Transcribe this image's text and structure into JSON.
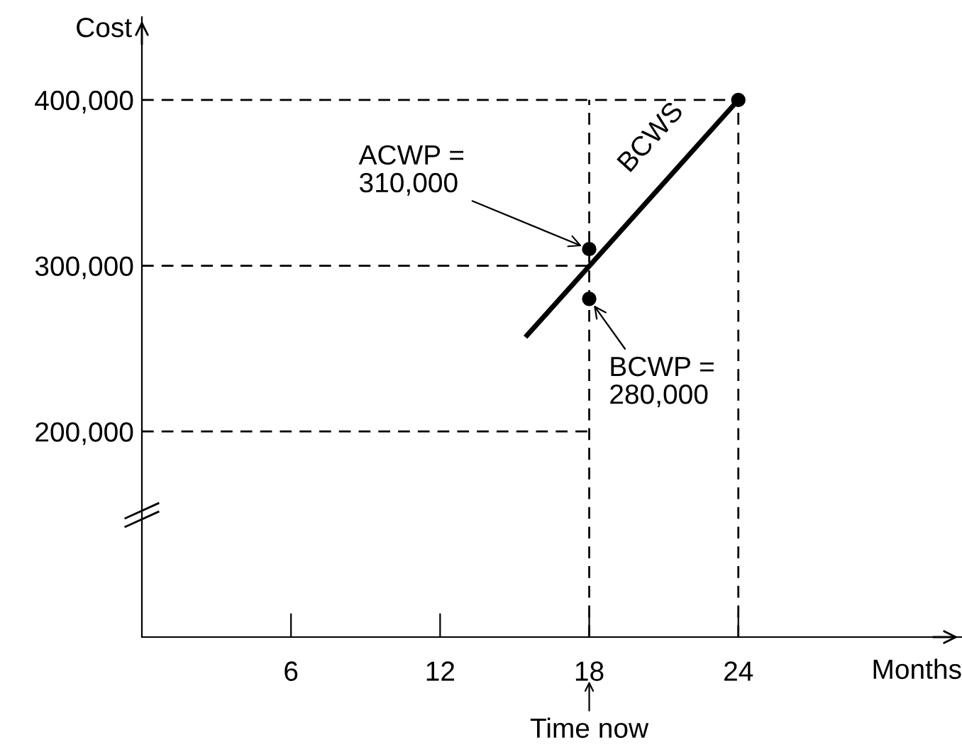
{
  "chart_data": {
    "type": "line",
    "xlabel": "Months",
    "ylabel": "Cost",
    "xlim": [
      0,
      33
    ],
    "ylim": [
      76000,
      450000
    ],
    "xticks": [
      6,
      12,
      18,
      24
    ],
    "yticks": [
      {
        "value": 200000,
        "label": "200,000"
      },
      {
        "value": 300000,
        "label": "300,000"
      },
      {
        "value": 400000,
        "label": "400,000"
      }
    ],
    "grid": false,
    "legend": false,
    "series": [
      {
        "name": "BCWS",
        "color": "#000000",
        "line_style": "solid",
        "x": [
          15.5,
          24
        ],
        "values": [
          258000,
          400000
        ]
      },
      {
        "type": "scatter",
        "color": "#000000",
        "marker": "circle",
        "x": [
          18,
          18,
          24
        ],
        "values": [
          310000,
          280000,
          400000
        ]
      },
      {
        "type": "line",
        "color": "#000000",
        "line_style": "dashed",
        "x": [
          0,
          24
        ],
        "values": [
          400000,
          400000
        ]
      },
      {
        "type": "line",
        "color": "#000000",
        "line_style": "dashed",
        "x": [
          0,
          18
        ],
        "values": [
          300000,
          300000
        ]
      },
      {
        "type": "line",
        "color": "#000000",
        "line_style": "dashed",
        "x": [
          0,
          18
        ],
        "values": [
          200000,
          200000
        ]
      }
    ],
    "ref_lines": [
      {
        "axis": "x",
        "value": 18,
        "label": null,
        "color": "#000000",
        "line_style": "dashed"
      },
      {
        "axis": "x",
        "value": 24,
        "label": null,
        "color": "#000000",
        "line_style": "dashed"
      }
    ],
    "annotations": [
      {
        "text": "ACWP =\n310,000",
        "x": 18,
        "y": 310000
      },
      {
        "text": "BCWP =\n280,000",
        "x": 18,
        "y": 280000
      },
      "Time now"
    ]
  }
}
